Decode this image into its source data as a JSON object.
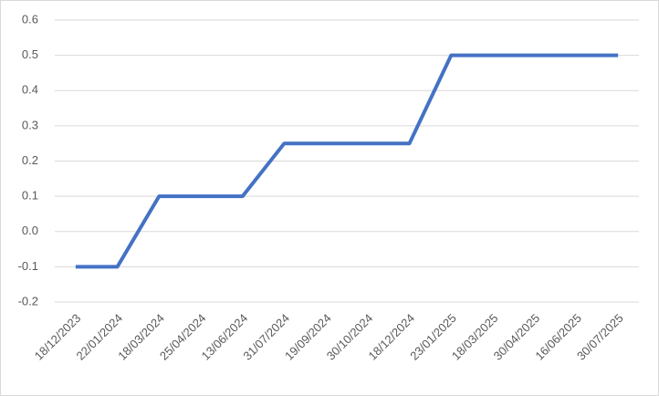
{
  "chart_data": {
    "type": "line",
    "categories": [
      "18/12/2023",
      "22/01/2024",
      "18/03/2024",
      "25/04/2024",
      "13/06/2024",
      "31/07/2024",
      "19/09/2024",
      "30/10/2024",
      "18/12/2024",
      "23/01/2025",
      "18/03/2025",
      "30/04/2025",
      "16/06/2025",
      "30/07/2025"
    ],
    "values": [
      -0.1,
      -0.1,
      0.1,
      0.1,
      0.1,
      0.25,
      0.25,
      0.25,
      0.25,
      0.5,
      0.5,
      0.5,
      0.5,
      0.5
    ],
    "color": "#4472c4",
    "ylim": [
      -0.2,
      0.6
    ],
    "yticks": [
      -0.2,
      -0.1,
      {
        "value": 0,
        "label": "0.0"
      },
      0.1,
      0.2,
      0.3,
      0.4,
      0.5,
      0.6
    ],
    "grid": true
  }
}
